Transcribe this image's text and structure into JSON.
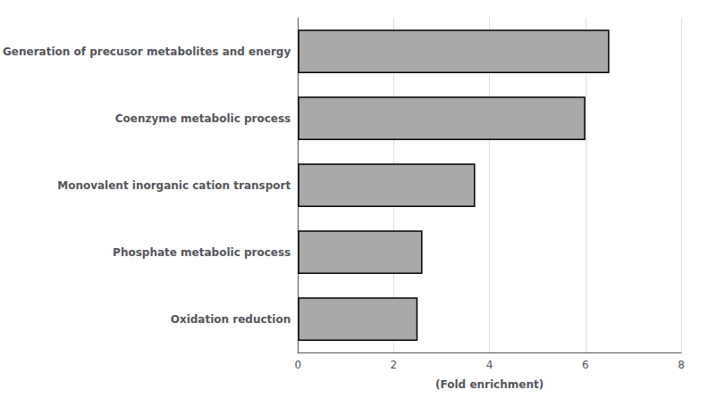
{
  "chart_data": {
    "type": "bar",
    "orientation": "horizontal",
    "categories": [
      "Oxidation reduction",
      "Phosphate metabolic process",
      "Monovalent inorganic cation transport",
      "Coenzyme metabolic process",
      "Generation of precusor metabolites and energy"
    ],
    "values": [
      2.5,
      2.6,
      3.7,
      6.0,
      6.5
    ],
    "color": "#a9a9a9",
    "xlabel": "(Fold enrichment)",
    "xlim": [
      0,
      8
    ],
    "xticks": [
      0,
      2,
      4,
      6,
      8
    ],
    "grid": true
  }
}
